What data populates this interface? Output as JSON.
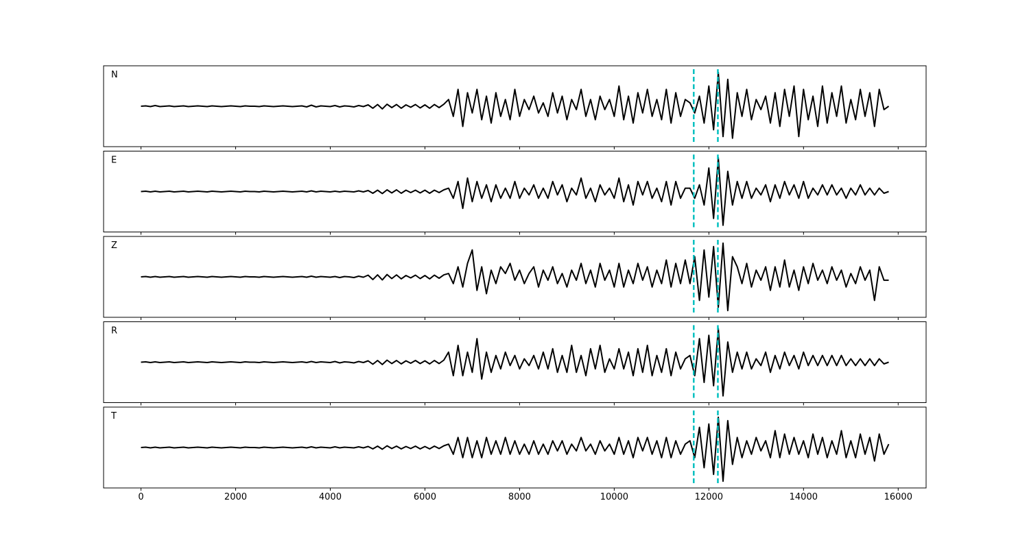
{
  "chart_data": {
    "type": "line",
    "x": [
      0,
      100,
      200,
      300,
      400,
      500,
      600,
      700,
      800,
      900,
      1000,
      1100,
      1200,
      1300,
      1400,
      1500,
      1600,
      1700,
      1800,
      1900,
      2000,
      2100,
      2200,
      2300,
      2400,
      2500,
      2600,
      2700,
      2800,
      2900,
      3000,
      3100,
      3200,
      3300,
      3400,
      3500,
      3600,
      3700,
      3800,
      3900,
      4000,
      4100,
      4200,
      4300,
      4400,
      4500,
      4600,
      4700,
      4800,
      4900,
      5000,
      5100,
      5200,
      5300,
      5400,
      5500,
      5600,
      5700,
      5800,
      5900,
      6000,
      6100,
      6200,
      6300,
      6400,
      6500,
      6600,
      6700,
      6800,
      6900,
      7000,
      7100,
      7200,
      7300,
      7400,
      7500,
      7600,
      7700,
      7800,
      7900,
      8000,
      8100,
      8200,
      8300,
      8400,
      8500,
      8600,
      8700,
      8800,
      8900,
      9000,
      9100,
      9200,
      9300,
      9400,
      9500,
      9600,
      9700,
      9800,
      9900,
      10000,
      10100,
      10200,
      10300,
      10400,
      10500,
      10600,
      10700,
      10800,
      10900,
      11000,
      11100,
      11200,
      11300,
      11400,
      11500,
      11600,
      11700,
      11800,
      11900,
      12000,
      12100,
      12200,
      12300,
      12400,
      12500,
      12600,
      12700,
      12800,
      12900,
      13000,
      13100,
      13200,
      13300,
      13400,
      13500,
      13600,
      13700,
      13800,
      13900,
      14000,
      14100,
      14200,
      14300,
      14400,
      14500,
      14600,
      14700,
      14800,
      14900,
      15000,
      15100,
      15200,
      15300,
      15400,
      15500,
      15600,
      15700,
      15800
    ],
    "xlim": [
      -790,
      16590
    ],
    "xticks": [
      0,
      2000,
      4000,
      6000,
      8000,
      10000,
      12000,
      14000,
      16000
    ],
    "ylim": [
      -1.2,
      1.2
    ],
    "vlines": [
      11680,
      12190
    ],
    "vline_color": "#00bfbf",
    "series": [
      {
        "name": "N",
        "color": "#000000",
        "values": [
          0,
          0.01,
          -0.01,
          0.02,
          -0.01,
          0,
          0.01,
          -0.01,
          0,
          0.01,
          -0.01,
          0,
          0.01,
          0,
          -0.01,
          0.01,
          0,
          -0.01,
          0,
          0.01,
          0,
          -0.01,
          0.01,
          0,
          0,
          -0.01,
          0.01,
          0,
          -0.01,
          0,
          0.01,
          0,
          -0.01,
          0,
          0.01,
          -0.02,
          0.03,
          -0.02,
          0.01,
          0,
          -0.01,
          0.02,
          -0.02,
          0.01,
          0,
          -0.02,
          0.02,
          -0.01,
          0.04,
          -0.06,
          0.05,
          -0.08,
          0.06,
          -0.04,
          0.05,
          -0.06,
          0.04,
          -0.03,
          0.05,
          -0.05,
          0.04,
          -0.06,
          0.05,
          -0.04,
          0.06,
          0.2,
          -0.3,
          0.5,
          -0.6,
          0.4,
          -0.2,
          0.5,
          -0.4,
          0.3,
          -0.5,
          0.4,
          -0.3,
          0.2,
          -0.4,
          0.5,
          -0.3,
          0.2,
          -0.1,
          0.3,
          -0.2,
          0.1,
          -0.3,
          0.4,
          -0.2,
          0.3,
          -0.4,
          0.2,
          -0.1,
          0.5,
          -0.3,
          0.2,
          -0.4,
          0.3,
          -0.1,
          0.2,
          -0.3,
          0.6,
          -0.4,
          0.3,
          -0.5,
          0.4,
          -0.2,
          0.5,
          -0.3,
          0.2,
          -0.4,
          0.5,
          -0.5,
          0.4,
          -0.3,
          0.2,
          0.1,
          -0.2,
          0.3,
          -0.5,
          0.6,
          -0.7,
          1.0,
          -0.9,
          0.8,
          -0.95,
          0.4,
          -0.3,
          0.5,
          -0.4,
          0.2,
          -0.1,
          0.3,
          -0.5,
          0.4,
          -0.6,
          0.5,
          -0.3,
          0.6,
          -0.9,
          0.5,
          -0.4,
          0.3,
          -0.6,
          0.6,
          -0.5,
          0.4,
          -0.3,
          0.6,
          -0.5,
          0.2,
          -0.4,
          0.5,
          -0.3,
          0.4,
          -0.6,
          0.5,
          -0.1,
          0
        ]
      },
      {
        "name": "E",
        "color": "#000000",
        "values": [
          0,
          0.01,
          -0.01,
          0.01,
          -0.01,
          0,
          0.01,
          -0.01,
          0,
          0.01,
          -0.01,
          0,
          0.01,
          0,
          -0.01,
          0.01,
          0,
          -0.01,
          0,
          0.01,
          0,
          -0.01,
          0.01,
          0,
          0,
          -0.01,
          0.01,
          0,
          -0.01,
          0,
          0.01,
          0,
          -0.01,
          0,
          0.01,
          -0.01,
          0.02,
          -0.01,
          0.01,
          0,
          -0.01,
          0.01,
          -0.01,
          0.01,
          0,
          -0.01,
          0.02,
          -0.01,
          0.03,
          -0.05,
          0.04,
          -0.06,
          0.05,
          -0.04,
          0.05,
          -0.05,
          0.04,
          -0.03,
          0.04,
          -0.04,
          0.04,
          -0.05,
          0.04,
          -0.03,
          0.05,
          0.1,
          -0.2,
          0.3,
          -0.5,
          0.4,
          -0.3,
          0.3,
          -0.2,
          0.2,
          -0.3,
          0.2,
          -0.2,
          0.1,
          -0.2,
          0.3,
          -0.2,
          0.1,
          -0.1,
          0.2,
          -0.2,
          0.1,
          -0.2,
          0.3,
          -0.1,
          0.2,
          -0.3,
          0.1,
          -0.1,
          0.4,
          -0.2,
          0.1,
          -0.3,
          0.2,
          -0.1,
          0.1,
          -0.2,
          0.4,
          -0.3,
          0.2,
          -0.4,
          0.3,
          -0.1,
          0.3,
          -0.2,
          0.1,
          -0.3,
          0.3,
          -0.4,
          0.3,
          -0.2,
          0.1,
          0.1,
          -0.2,
          0.2,
          -0.4,
          0.7,
          -0.8,
          1.0,
          -1.0,
          0.6,
          -0.4,
          0.3,
          -0.2,
          0.3,
          -0.2,
          0.1,
          -0.1,
          0.2,
          -0.3,
          0.2,
          -0.2,
          0.3,
          -0.1,
          0.2,
          -0.2,
          0.3,
          -0.2,
          0.1,
          -0.1,
          0.2,
          -0.1,
          0.2,
          -0.1,
          0.1,
          -0.2,
          0.1,
          -0.1,
          0.2,
          -0.1,
          0.1,
          -0.1,
          0.1,
          -0.05,
          0
        ]
      },
      {
        "name": "Z",
        "color": "#000000",
        "values": [
          0,
          0.01,
          -0.01,
          0.01,
          -0.01,
          0,
          0.01,
          -0.01,
          0,
          0.01,
          -0.01,
          0,
          0.01,
          0,
          -0.01,
          0.01,
          0,
          -0.01,
          0,
          0.01,
          0,
          -0.01,
          0.01,
          0,
          0,
          -0.01,
          0.01,
          0,
          -0.01,
          0,
          0.01,
          0,
          -0.01,
          0,
          0.01,
          -0.01,
          0.02,
          -0.01,
          0.01,
          0,
          -0.01,
          0.01,
          -0.02,
          0.01,
          0,
          -0.02,
          0.02,
          -0.01,
          0.05,
          -0.08,
          0.06,
          -0.09,
          0.07,
          -0.05,
          0.06,
          -0.06,
          0.04,
          -0.03,
          0.05,
          -0.05,
          0.04,
          -0.06,
          0.05,
          -0.04,
          0.06,
          0.1,
          -0.2,
          0.3,
          -0.3,
          0.4,
          0.8,
          -0.4,
          0.3,
          -0.5,
          0.2,
          -0.2,
          0.3,
          0.1,
          0.4,
          -0.1,
          0.2,
          -0.2,
          0.1,
          0.3,
          -0.3,
          0.2,
          -0.1,
          0.3,
          -0.2,
          0.1,
          -0.3,
          0.2,
          -0.1,
          0.4,
          -0.2,
          0.2,
          -0.3,
          0.4,
          -0.1,
          0.2,
          -0.3,
          0.4,
          -0.3,
          0.2,
          -0.2,
          0.4,
          -0.1,
          0.3,
          -0.3,
          0.2,
          -0.2,
          0.5,
          -0.3,
          0.4,
          -0.2,
          0.5,
          -0.2,
          0.6,
          -0.7,
          0.8,
          -0.6,
          0.9,
          -0.9,
          1.0,
          -1.0,
          0.6,
          0.3,
          -0.2,
          0.4,
          -0.3,
          0.2,
          -0.1,
          0.3,
          -0.4,
          0.3,
          -0.3,
          0.5,
          -0.3,
          0.2,
          -0.4,
          0.3,
          -0.2,
          0.4,
          -0.1,
          0.2,
          -0.2,
          0.3,
          -0.1,
          0.2,
          -0.3,
          0.1,
          -0.2,
          0.3,
          -0.1,
          0.2,
          -0.7,
          0.3,
          -0.1,
          -0.1
        ]
      },
      {
        "name": "R",
        "color": "#000000",
        "values": [
          0,
          0.01,
          -0.01,
          0.01,
          -0.01,
          0,
          0.01,
          -0.01,
          0,
          0.01,
          -0.01,
          0,
          0.01,
          0,
          -0.01,
          0.01,
          0,
          -0.01,
          0,
          0.01,
          0,
          -0.01,
          0.01,
          0,
          0,
          -0.01,
          0.01,
          0,
          -0.01,
          0,
          0.01,
          0,
          -0.01,
          0,
          0.01,
          -0.01,
          0.02,
          -0.01,
          0.01,
          0,
          -0.01,
          0.02,
          -0.02,
          0.01,
          0,
          -0.02,
          0.02,
          -0.01,
          0.04,
          -0.06,
          0.05,
          -0.07,
          0.06,
          -0.04,
          0.05,
          -0.05,
          0.04,
          -0.03,
          0.05,
          -0.04,
          0.04,
          -0.05,
          0.05,
          -0.04,
          0.06,
          0.3,
          -0.4,
          0.5,
          -0.4,
          0.3,
          -0.3,
          0.7,
          -0.5,
          0.3,
          -0.3,
          0.2,
          -0.2,
          0.3,
          -0.1,
          0.2,
          -0.2,
          0.1,
          -0.1,
          0.2,
          -0.2,
          0.3,
          -0.2,
          0.4,
          -0.3,
          0.2,
          -0.3,
          0.5,
          -0.3,
          0.2,
          -0.4,
          0.4,
          -0.2,
          0.5,
          -0.3,
          0.1,
          -0.2,
          0.4,
          -0.2,
          0.3,
          -0.4,
          0.4,
          -0.3,
          0.5,
          -0.4,
          0.2,
          -0.3,
          0.4,
          -0.4,
          0.3,
          -0.2,
          0.1,
          0.2,
          -0.4,
          0.7,
          -0.6,
          0.8,
          -0.7,
          1.0,
          -1.0,
          0.6,
          -0.3,
          0.3,
          -0.2,
          0.3,
          -0.2,
          0.1,
          -0.1,
          0.3,
          -0.3,
          0.2,
          -0.2,
          0.3,
          -0.1,
          0.2,
          -0.2,
          0.3,
          -0.1,
          0.2,
          -0.1,
          0.2,
          -0.1,
          0.2,
          -0.1,
          0.2,
          -0.1,
          0.1,
          -0.1,
          0.1,
          -0.1,
          0.1,
          -0.1,
          0.1,
          -0.05,
          0
        ]
      },
      {
        "name": "T",
        "color": "#000000",
        "values": [
          0,
          0.01,
          -0.01,
          0.01,
          -0.01,
          0,
          0.01,
          -0.01,
          0,
          0.01,
          -0.01,
          0,
          0.01,
          0,
          -0.01,
          0.01,
          0,
          -0.01,
          0,
          0.01,
          0,
          -0.01,
          0.01,
          0,
          0,
          -0.01,
          0.01,
          0,
          -0.01,
          0,
          0.01,
          0,
          -0.01,
          0,
          0.01,
          -0.01,
          0.02,
          -0.01,
          0.01,
          0,
          -0.01,
          0.02,
          -0.01,
          0.01,
          0,
          -0.01,
          0.02,
          -0.01,
          0.03,
          -0.04,
          0.04,
          -0.05,
          0.05,
          -0.03,
          0.04,
          -0.04,
          0.03,
          -0.03,
          0.04,
          -0.04,
          0.03,
          -0.04,
          0.04,
          -0.03,
          0.05,
          0.1,
          -0.2,
          0.3,
          -0.3,
          0.3,
          -0.3,
          0.2,
          -0.3,
          0.3,
          -0.2,
          0.2,
          -0.2,
          0.3,
          -0.2,
          0.2,
          -0.2,
          0.1,
          -0.2,
          0.2,
          -0.2,
          0.1,
          -0.2,
          0.2,
          -0.1,
          0.2,
          -0.2,
          0.1,
          -0.1,
          0.3,
          -0.1,
          0.1,
          -0.2,
          0.2,
          -0.1,
          0.1,
          -0.2,
          0.3,
          -0.2,
          0.2,
          -0.3,
          0.3,
          -0.1,
          0.3,
          -0.2,
          0.2,
          -0.3,
          0.3,
          -0.3,
          0.2,
          -0.2,
          0.1,
          0.2,
          -0.3,
          0.6,
          -0.6,
          0.7,
          -0.8,
          0.9,
          -1.0,
          0.8,
          -0.5,
          0.3,
          -0.3,
          0.2,
          -0.2,
          0.3,
          -0.1,
          0.2,
          -0.3,
          0.5,
          -0.3,
          0.4,
          -0.2,
          0.3,
          -0.2,
          0.2,
          -0.3,
          0.4,
          -0.2,
          0.3,
          -0.3,
          0.2,
          -0.2,
          0.5,
          -0.3,
          0.2,
          -0.3,
          0.4,
          -0.2,
          0.3,
          -0.4,
          0.4,
          -0.2,
          0.1
        ]
      }
    ]
  }
}
